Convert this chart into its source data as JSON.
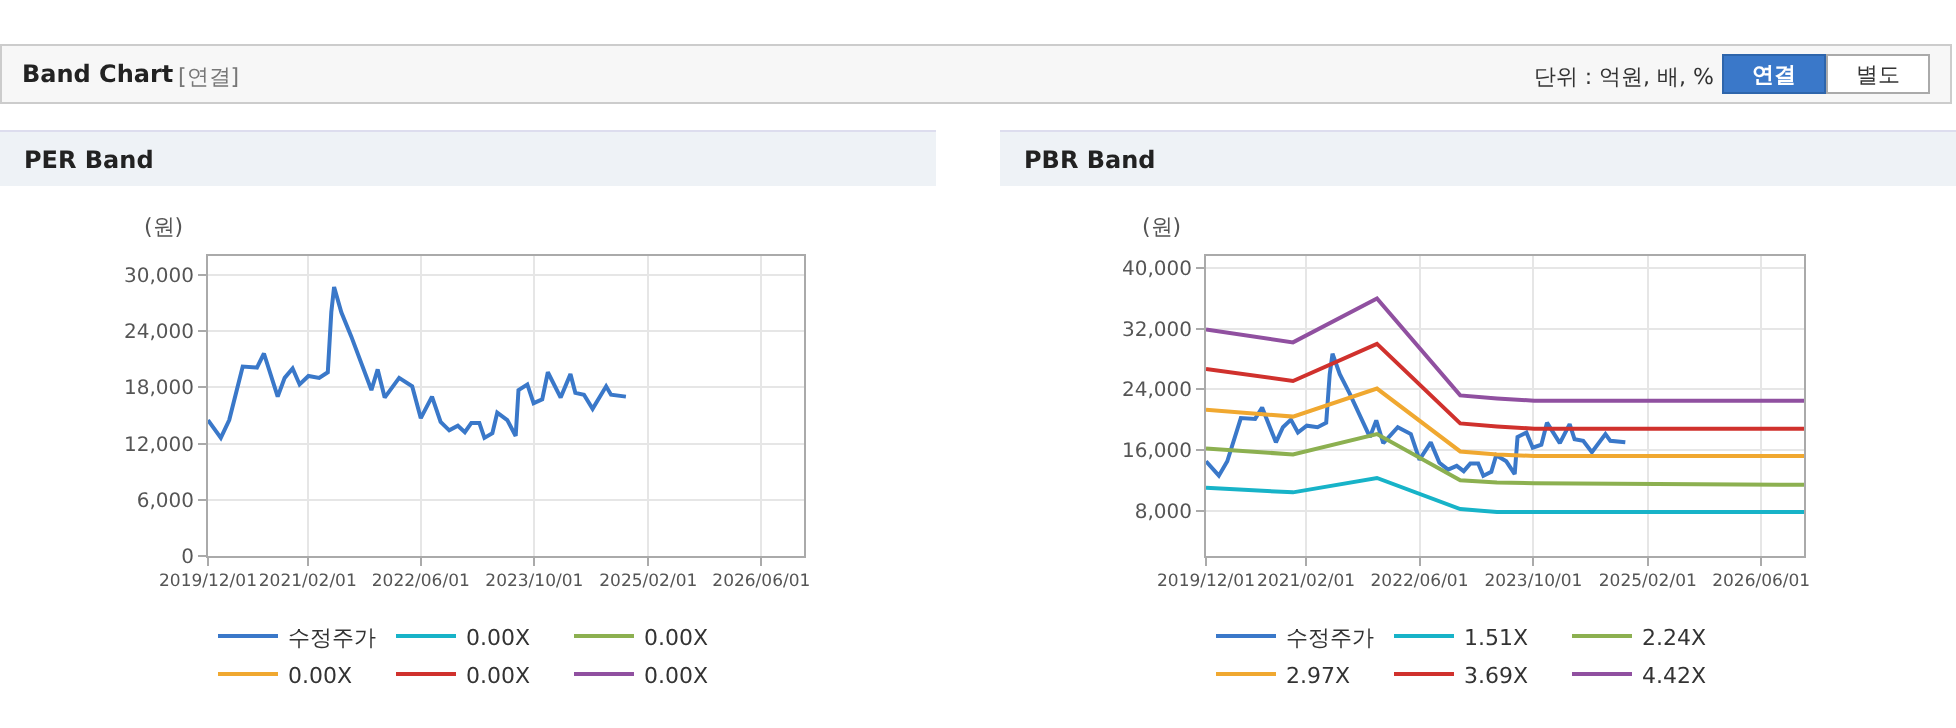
{
  "chart_data": [
    {
      "type": "line",
      "title": "PER Band",
      "ylabel": "(원)",
      "annotations": [
        "Band Chart",
        "[연결]",
        "단위 : 억원, 배, %",
        "연결",
        "별도"
      ],
      "x": [
        "2019-12-01",
        "2020-01-25",
        "2020-03-01",
        "2020-04-28",
        "2020-06-28",
        "2020-07-28",
        "2020-09-25",
        "2020-10-25",
        "2020-11-28",
        "2020-12-28",
        "2021-02-04",
        "2021-03-22",
        "2021-04-28",
        "2021-05-13",
        "2021-05-25",
        "2021-06-25",
        "2021-08-07",
        "2021-11-01",
        "2021-11-28",
        "2021-12-28",
        "2022-02-28",
        "2022-04-25",
        "2022-06-01",
        "2022-07-19",
        "2022-08-25",
        "2022-10-01",
        "2022-11-07",
        "2022-12-07",
        "2023-01-04",
        "2023-02-07",
        "2023-03-01",
        "2023-04-04",
        "2023-04-25",
        "2023-06-07",
        "2023-07-13",
        "2023-07-25",
        "2023-09-01",
        "2023-09-28",
        "2023-11-04",
        "2023-11-28",
        "2024-01-22",
        "2024-03-04",
        "2024-03-25",
        "2024-05-01",
        "2024-06-07",
        "2024-08-04",
        "2024-08-25",
        "2024-10-28"
      ],
      "series": [
        {
          "name": "수정주가",
          "color": "#3a78c9",
          "values": [
            14500,
            12600,
            14500,
            20200,
            20100,
            21600,
            17000,
            19000,
            20000,
            18300,
            19200,
            19000,
            19600,
            26000,
            28700,
            26000,
            23400,
            17700,
            19900,
            16900,
            19000,
            18100,
            14700,
            17000,
            14300,
            13400,
            13900,
            13200,
            14200,
            14200,
            12600,
            13100,
            15300,
            14500,
            12800,
            17700,
            18300,
            16300,
            16700,
            19600,
            16900,
            19400,
            17400,
            17200,
            15700,
            18100,
            17200,
            17000
          ]
        },
        {
          "name": "0.00X",
          "color": "#17b3c8",
          "values": [
            null,
            null,
            null,
            null,
            null,
            null,
            null,
            null,
            null,
            null,
            null,
            null,
            null,
            null,
            null,
            null,
            null,
            null,
            null,
            null,
            null,
            null,
            null,
            null,
            null,
            null,
            null,
            null,
            null,
            null,
            null,
            null,
            null,
            null,
            null,
            null,
            null,
            null,
            null,
            null,
            null,
            null,
            null,
            null,
            null,
            null,
            null,
            null
          ]
        },
        {
          "name": "0.00X",
          "color": "#8cb050",
          "values": [
            null,
            null,
            null,
            null,
            null,
            null,
            null,
            null,
            null,
            null,
            null,
            null,
            null,
            null,
            null,
            null,
            null,
            null,
            null,
            null,
            null,
            null,
            null,
            null,
            null,
            null,
            null,
            null,
            null,
            null,
            null,
            null,
            null,
            null,
            null,
            null,
            null,
            null,
            null,
            null,
            null,
            null,
            null,
            null,
            null,
            null,
            null,
            null
          ]
        },
        {
          "name": "0.00X",
          "color": "#f0a830",
          "values": [
            null,
            null,
            null,
            null,
            null,
            null,
            null,
            null,
            null,
            null,
            null,
            null,
            null,
            null,
            null,
            null,
            null,
            null,
            null,
            null,
            null,
            null,
            null,
            null,
            null,
            null,
            null,
            null,
            null,
            null,
            null,
            null,
            null,
            null,
            null,
            null,
            null,
            null,
            null,
            null,
            null,
            null,
            null,
            null,
            null,
            null,
            null,
            null
          ]
        },
        {
          "name": "0.00X",
          "color": "#d0312d",
          "values": [
            null,
            null,
            null,
            null,
            null,
            null,
            null,
            null,
            null,
            null,
            null,
            null,
            null,
            null,
            null,
            null,
            null,
            null,
            null,
            null,
            null,
            null,
            null,
            null,
            null,
            null,
            null,
            null,
            null,
            null,
            null,
            null,
            null,
            null,
            null,
            null,
            null,
            null,
            null,
            null,
            null,
            null,
            null,
            null,
            null,
            null,
            null,
            null
          ]
        },
        {
          "name": "0.00X",
          "color": "#9050a0",
          "values": [
            null,
            null,
            null,
            null,
            null,
            null,
            null,
            null,
            null,
            null,
            null,
            null,
            null,
            null,
            null,
            null,
            null,
            null,
            null,
            null,
            null,
            null,
            null,
            null,
            null,
            null,
            null,
            null,
            null,
            null,
            null,
            null,
            null,
            null,
            null,
            null,
            null,
            null,
            null,
            null,
            null,
            null,
            null,
            null,
            null,
            null,
            null,
            null
          ]
        }
      ],
      "xlim": [
        "2019-12-01",
        "2026-12-01"
      ],
      "xticks": [
        {
          "value": "2019-12-01",
          "label": "2019/12/01"
        },
        {
          "value": "2021-02-01",
          "label": "2021/02/01"
        },
        {
          "value": "2022-06-01",
          "label": "2022/06/01"
        },
        {
          "value": "2023-10-01",
          "label": "2023/10/01"
        },
        {
          "value": "2025-02-01",
          "label": "2025/02/01"
        },
        {
          "value": "2026-06-01",
          "label": "2026/06/01"
        }
      ],
      "ylim": [
        0,
        32000
      ],
      "yticks": [
        0,
        {
          "value": 6000,
          "label": "6,000"
        },
        {
          "value": 12000,
          "label": "12,000"
        },
        {
          "value": 18000,
          "label": "18,000"
        },
        {
          "value": 24000,
          "label": "24,000"
        },
        {
          "value": 30000,
          "label": "30,000"
        }
      ],
      "grid": true,
      "legend": "bottom",
      "marker": "none",
      "line_style": "solid"
    },
    {
      "type": "line",
      "title": "PBR Band",
      "ylabel": "(원)",
      "x": [
        "2019-12-01",
        "2020-01-25",
        "2020-03-01",
        "2020-04-28",
        "2020-06-28",
        "2020-07-28",
        "2020-09-25",
        "2020-10-25",
        "2020-11-28",
        "2020-12-28",
        "2021-02-04",
        "2021-03-22",
        "2021-04-28",
        "2021-05-13",
        "2021-05-25",
        "2021-06-25",
        "2021-08-07",
        "2021-11-01",
        "2021-11-28",
        "2021-12-28",
        "2022-02-28",
        "2022-04-25",
        "2022-06-01",
        "2022-07-19",
        "2022-08-25",
        "2022-10-01",
        "2022-11-07",
        "2022-12-07",
        "2023-01-04",
        "2023-02-07",
        "2023-03-01",
        "2023-04-04",
        "2023-04-25",
        "2023-06-07",
        "2023-07-13",
        "2023-07-25",
        "2023-09-01",
        "2023-09-28",
        "2023-11-04",
        "2023-11-28",
        "2024-01-22",
        "2024-03-04",
        "2024-03-25",
        "2024-05-01",
        "2024-06-07",
        "2024-08-04",
        "2024-08-25",
        "2024-10-28"
      ],
      "series": [
        {
          "name": "수정주가",
          "color": "#3a78c9",
          "values": [
            14500,
            12600,
            14500,
            20200,
            20100,
            21600,
            17000,
            19000,
            20000,
            18300,
            19200,
            19000,
            19600,
            26000,
            28700,
            26000,
            23400,
            17700,
            19900,
            16900,
            19000,
            18100,
            14700,
            17000,
            14300,
            13400,
            13900,
            13200,
            14200,
            14200,
            12600,
            13100,
            15300,
            14500,
            12800,
            17700,
            18300,
            16300,
            16700,
            19600,
            16900,
            19400,
            17400,
            17200,
            15700,
            18100,
            17200,
            17000
          ]
        },
        {
          "name": "1.51X",
          "color": "#17b3c8",
          "x": [
            "2019-12-01",
            "2020-12-07",
            "2021-12-01",
            "2022-11-22",
            "2023-04-28",
            "2023-10-04",
            "2026-12-01"
          ],
          "values": [
            11000,
            10400,
            12300,
            8200,
            7800,
            7800,
            7800
          ]
        },
        {
          "name": "2.24X",
          "color": "#8cb050",
          "x": [
            "2019-12-01",
            "2020-12-07",
            "2021-12-01",
            "2022-11-22",
            "2023-04-28",
            "2023-10-04",
            "2026-12-01"
          ],
          "values": [
            16200,
            15400,
            18100,
            12000,
            11700,
            11600,
            11400
          ]
        },
        {
          "name": "2.97X",
          "color": "#f0a830",
          "x": [
            "2019-12-01",
            "2020-12-07",
            "2021-12-01",
            "2022-11-22",
            "2023-04-28",
            "2023-10-04",
            "2026-12-01"
          ],
          "values": [
            21300,
            20400,
            24100,
            15800,
            15400,
            15200,
            15200
          ]
        },
        {
          "name": "3.69X",
          "color": "#d0312d",
          "x": [
            "2019-12-01",
            "2020-12-07",
            "2021-12-01",
            "2022-11-22",
            "2023-04-28",
            "2023-10-04",
            "2026-12-01"
          ],
          "values": [
            26700,
            25100,
            30000,
            19500,
            19100,
            18800,
            18800
          ]
        },
        {
          "name": "4.42X",
          "color": "#9050a0",
          "x": [
            "2019-12-01",
            "2020-12-07",
            "2021-12-01",
            "2022-11-22",
            "2023-04-28",
            "2023-10-04",
            "2026-12-01"
          ],
          "values": [
            31900,
            30200,
            36000,
            23200,
            22800,
            22500,
            22500
          ]
        }
      ],
      "xlim": [
        "2019-12-01",
        "2026-12-01"
      ],
      "xticks": [
        {
          "value": "2019-12-01",
          "label": "2019/12/01"
        },
        {
          "value": "2021-02-01",
          "label": "2021/02/01"
        },
        {
          "value": "2022-06-01",
          "label": "2022/06/01"
        },
        {
          "value": "2023-10-01",
          "label": "2023/10/01"
        },
        {
          "value": "2025-02-01",
          "label": "2025/02/01"
        },
        {
          "value": "2026-06-01",
          "label": "2026/06/01"
        }
      ],
      "ylim": [
        2000,
        41600
      ],
      "yticks": [
        {
          "value": 8000,
          "label": "8,000"
        },
        {
          "value": 16000,
          "label": "16,000"
        },
        {
          "value": 24000,
          "label": "24,000"
        },
        {
          "value": 32000,
          "label": "32,000"
        },
        {
          "value": 40000,
          "label": "40,000"
        }
      ],
      "grid": true,
      "legend": "bottom",
      "marker": "none",
      "line_style": "solid"
    }
  ]
}
